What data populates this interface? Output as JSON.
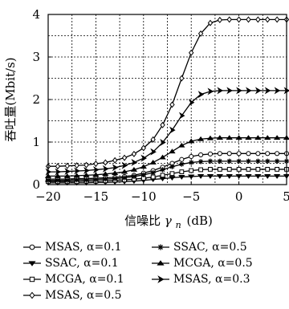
{
  "chart_data": {
    "type": "line",
    "ylabel": "吞吐量(Mbit/s)",
    "xlabel_text": "信噪比",
    "xlabel_symbol": "γ",
    "xlabel_subscript": "n",
    "xlabel_unit": "(dB)",
    "xlim": [
      -20,
      5
    ],
    "ylim": [
      0,
      4
    ],
    "xticks": [
      "−20",
      "−15",
      "−10",
      "−5",
      "0",
      "5"
    ],
    "yticks": [
      "0",
      "1",
      "2",
      "3",
      "4"
    ],
    "grid": true,
    "x": [
      -20,
      -19,
      -18,
      -17,
      -16,
      -15,
      -14,
      -13,
      -12,
      -11,
      -10,
      -9,
      -8,
      -7,
      -6,
      -5,
      -4,
      -3,
      -2,
      -1,
      0,
      1,
      2,
      3,
      4,
      5
    ],
    "series": [
      {
        "name": "MSAS, α=0.1",
        "marker": "circle",
        "values": [
          0.13,
          0.13,
          0.13,
          0.14,
          0.14,
          0.15,
          0.16,
          0.17,
          0.19,
          0.22,
          0.27,
          0.33,
          0.41,
          0.5,
          0.59,
          0.66,
          0.7,
          0.72,
          0.73,
          0.73,
          0.73,
          0.73,
          0.73,
          0.73,
          0.73,
          0.73
        ]
      },
      {
        "name": "SSAC, α=0.1",
        "marker": "triangle-down",
        "values": [
          0.04,
          0.04,
          0.04,
          0.04,
          0.04,
          0.05,
          0.05,
          0.06,
          0.07,
          0.08,
          0.1,
          0.12,
          0.14,
          0.16,
          0.18,
          0.19,
          0.2,
          0.2,
          0.2,
          0.2,
          0.2,
          0.2,
          0.2,
          0.2,
          0.2,
          0.2
        ]
      },
      {
        "name": "MCGA, α=0.1",
        "marker": "square",
        "values": [
          0.07,
          0.07,
          0.07,
          0.07,
          0.08,
          0.08,
          0.09,
          0.1,
          0.11,
          0.13,
          0.15,
          0.18,
          0.22,
          0.26,
          0.3,
          0.33,
          0.35,
          0.36,
          0.36,
          0.36,
          0.36,
          0.36,
          0.36,
          0.36,
          0.36,
          0.36
        ]
      },
      {
        "name": "MSAS, α=0.5",
        "marker": "diamond",
        "values": [
          0.43,
          0.43,
          0.44,
          0.45,
          0.46,
          0.49,
          0.52,
          0.57,
          0.63,
          0.72,
          0.86,
          1.06,
          1.4,
          1.88,
          2.5,
          3.1,
          3.55,
          3.8,
          3.87,
          3.88,
          3.88,
          3.88,
          3.88,
          3.88,
          3.88,
          3.88
        ]
      },
      {
        "name": "SSAC, α=0.5",
        "marker": "asterisk",
        "values": [
          0.1,
          0.1,
          0.1,
          0.11,
          0.11,
          0.12,
          0.13,
          0.14,
          0.16,
          0.19,
          0.23,
          0.28,
          0.35,
          0.42,
          0.48,
          0.52,
          0.54,
          0.55,
          0.55,
          0.55,
          0.55,
          0.55,
          0.55,
          0.55,
          0.55,
          0.55
        ]
      },
      {
        "name": "MCGA, α=0.5",
        "marker": "triangle-up",
        "values": [
          0.2,
          0.2,
          0.2,
          0.21,
          0.22,
          0.23,
          0.25,
          0.27,
          0.3,
          0.35,
          0.42,
          0.52,
          0.64,
          0.78,
          0.92,
          1.02,
          1.07,
          1.09,
          1.1,
          1.1,
          1.1,
          1.1,
          1.1,
          1.1,
          1.1,
          1.1
        ]
      },
      {
        "name": "MSAS, α=0.3",
        "marker": "arrow-right",
        "values": [
          0.3,
          0.3,
          0.31,
          0.32,
          0.33,
          0.35,
          0.37,
          0.4,
          0.45,
          0.52,
          0.62,
          0.77,
          0.99,
          1.28,
          1.62,
          1.93,
          2.12,
          2.19,
          2.21,
          2.21,
          2.21,
          2.21,
          2.21,
          2.21,
          2.21,
          2.21
        ]
      }
    ],
    "legend": {
      "placement": "bottom",
      "items": [
        {
          "marker": "circle",
          "label": "MSAS, α=0.1"
        },
        {
          "marker": "asterisk",
          "label": "SSAC, α=0.5"
        },
        {
          "marker": "triangle-down",
          "label": "SSAC, α=0.1"
        },
        {
          "marker": "triangle-up",
          "label": "MCGA, α=0.5"
        },
        {
          "marker": "square",
          "label": "MCGA, α=0.1"
        },
        {
          "marker": "arrow-right",
          "label": "MSAS, α=0.3"
        },
        {
          "marker": "diamond",
          "label": "MSAS, α=0.5"
        }
      ]
    }
  }
}
